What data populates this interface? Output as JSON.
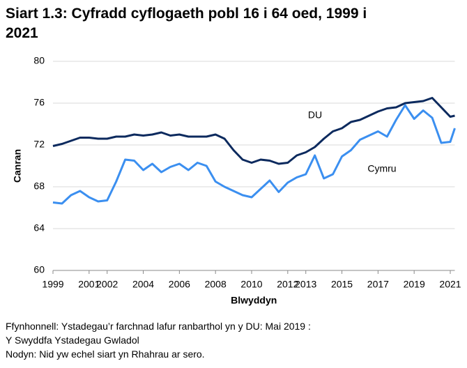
{
  "chart_data": {
    "type": "line",
    "title": "Siart 1.3: Cyfradd cyflogaeth pobl 16 i 64 oed, 1999 i 2021",
    "x_label": "Blwyddyn",
    "y_label": "Canran",
    "source": "Ffynhonnell: Ystadegau’r farchnad lafur ranbarthol yn y DU: Mai 2019 : Y Swyddfa Ystadegau Gwladol",
    "note": "Nodyn: Nid yw echel siart yn Rhahrau ar sero.",
    "x": [
      1999,
      1999.5,
      2000,
      2000.5,
      2001,
      2001.5,
      2002,
      2002.5,
      2003,
      2003.5,
      2004,
      2004.5,
      2005,
      2005.5,
      2006,
      2006.5,
      2007,
      2007.5,
      2008,
      2008.5,
      2009,
      2009.5,
      2010,
      2010.5,
      2011,
      2011.5,
      2012,
      2012.5,
      2013,
      2013.5,
      2014,
      2014.5,
      2015,
      2015.5,
      2016,
      2016.5,
      2017,
      2017.5,
      2018,
      2018.5,
      2019,
      2019.5,
      2020,
      2020.5,
      2021,
      2021.25
    ],
    "series": [
      {
        "name": "DU",
        "color": "#0c2a5e",
        "values": [
          71.9,
          72.1,
          72.4,
          72.7,
          72.7,
          72.6,
          72.6,
          72.8,
          72.8,
          73.0,
          72.9,
          73.0,
          73.2,
          72.9,
          73.0,
          72.8,
          72.8,
          72.8,
          73.0,
          72.6,
          71.5,
          70.6,
          70.3,
          70.6,
          70.5,
          70.2,
          70.3,
          71.0,
          71.3,
          71.8,
          72.6,
          73.3,
          73.6,
          74.2,
          74.4,
          74.8,
          75.2,
          75.5,
          75.6,
          76.0,
          76.1,
          76.2,
          76.5,
          75.6,
          74.7,
          74.8
        ]
      },
      {
        "name": "Cymru",
        "color": "#3b8ff0",
        "values": [
          66.5,
          66.4,
          67.2,
          67.6,
          67.0,
          66.6,
          66.7,
          68.5,
          70.6,
          70.5,
          69.6,
          70.2,
          69.4,
          69.9,
          70.2,
          69.6,
          70.3,
          70.0,
          68.5,
          68.0,
          67.6,
          67.2,
          67.0,
          67.8,
          68.6,
          67.5,
          68.4,
          68.9,
          69.2,
          71.0,
          68.8,
          69.2,
          70.9,
          71.5,
          72.5,
          72.9,
          73.3,
          72.8,
          74.4,
          75.8,
          74.5,
          75.3,
          74.6,
          72.2,
          72.3,
          73.6
        ]
      }
    ],
    "xlim": [
      1999,
      2021.25
    ],
    "xticks": [
      1999,
      2001,
      2002,
      2004,
      2006,
      2008,
      2010,
      2012,
      2013,
      2015,
      2017,
      2019,
      2021
    ],
    "ylim": [
      60,
      80
    ],
    "yticks": [
      60,
      64,
      68,
      72,
      76,
      80
    ],
    "grid": true
  }
}
